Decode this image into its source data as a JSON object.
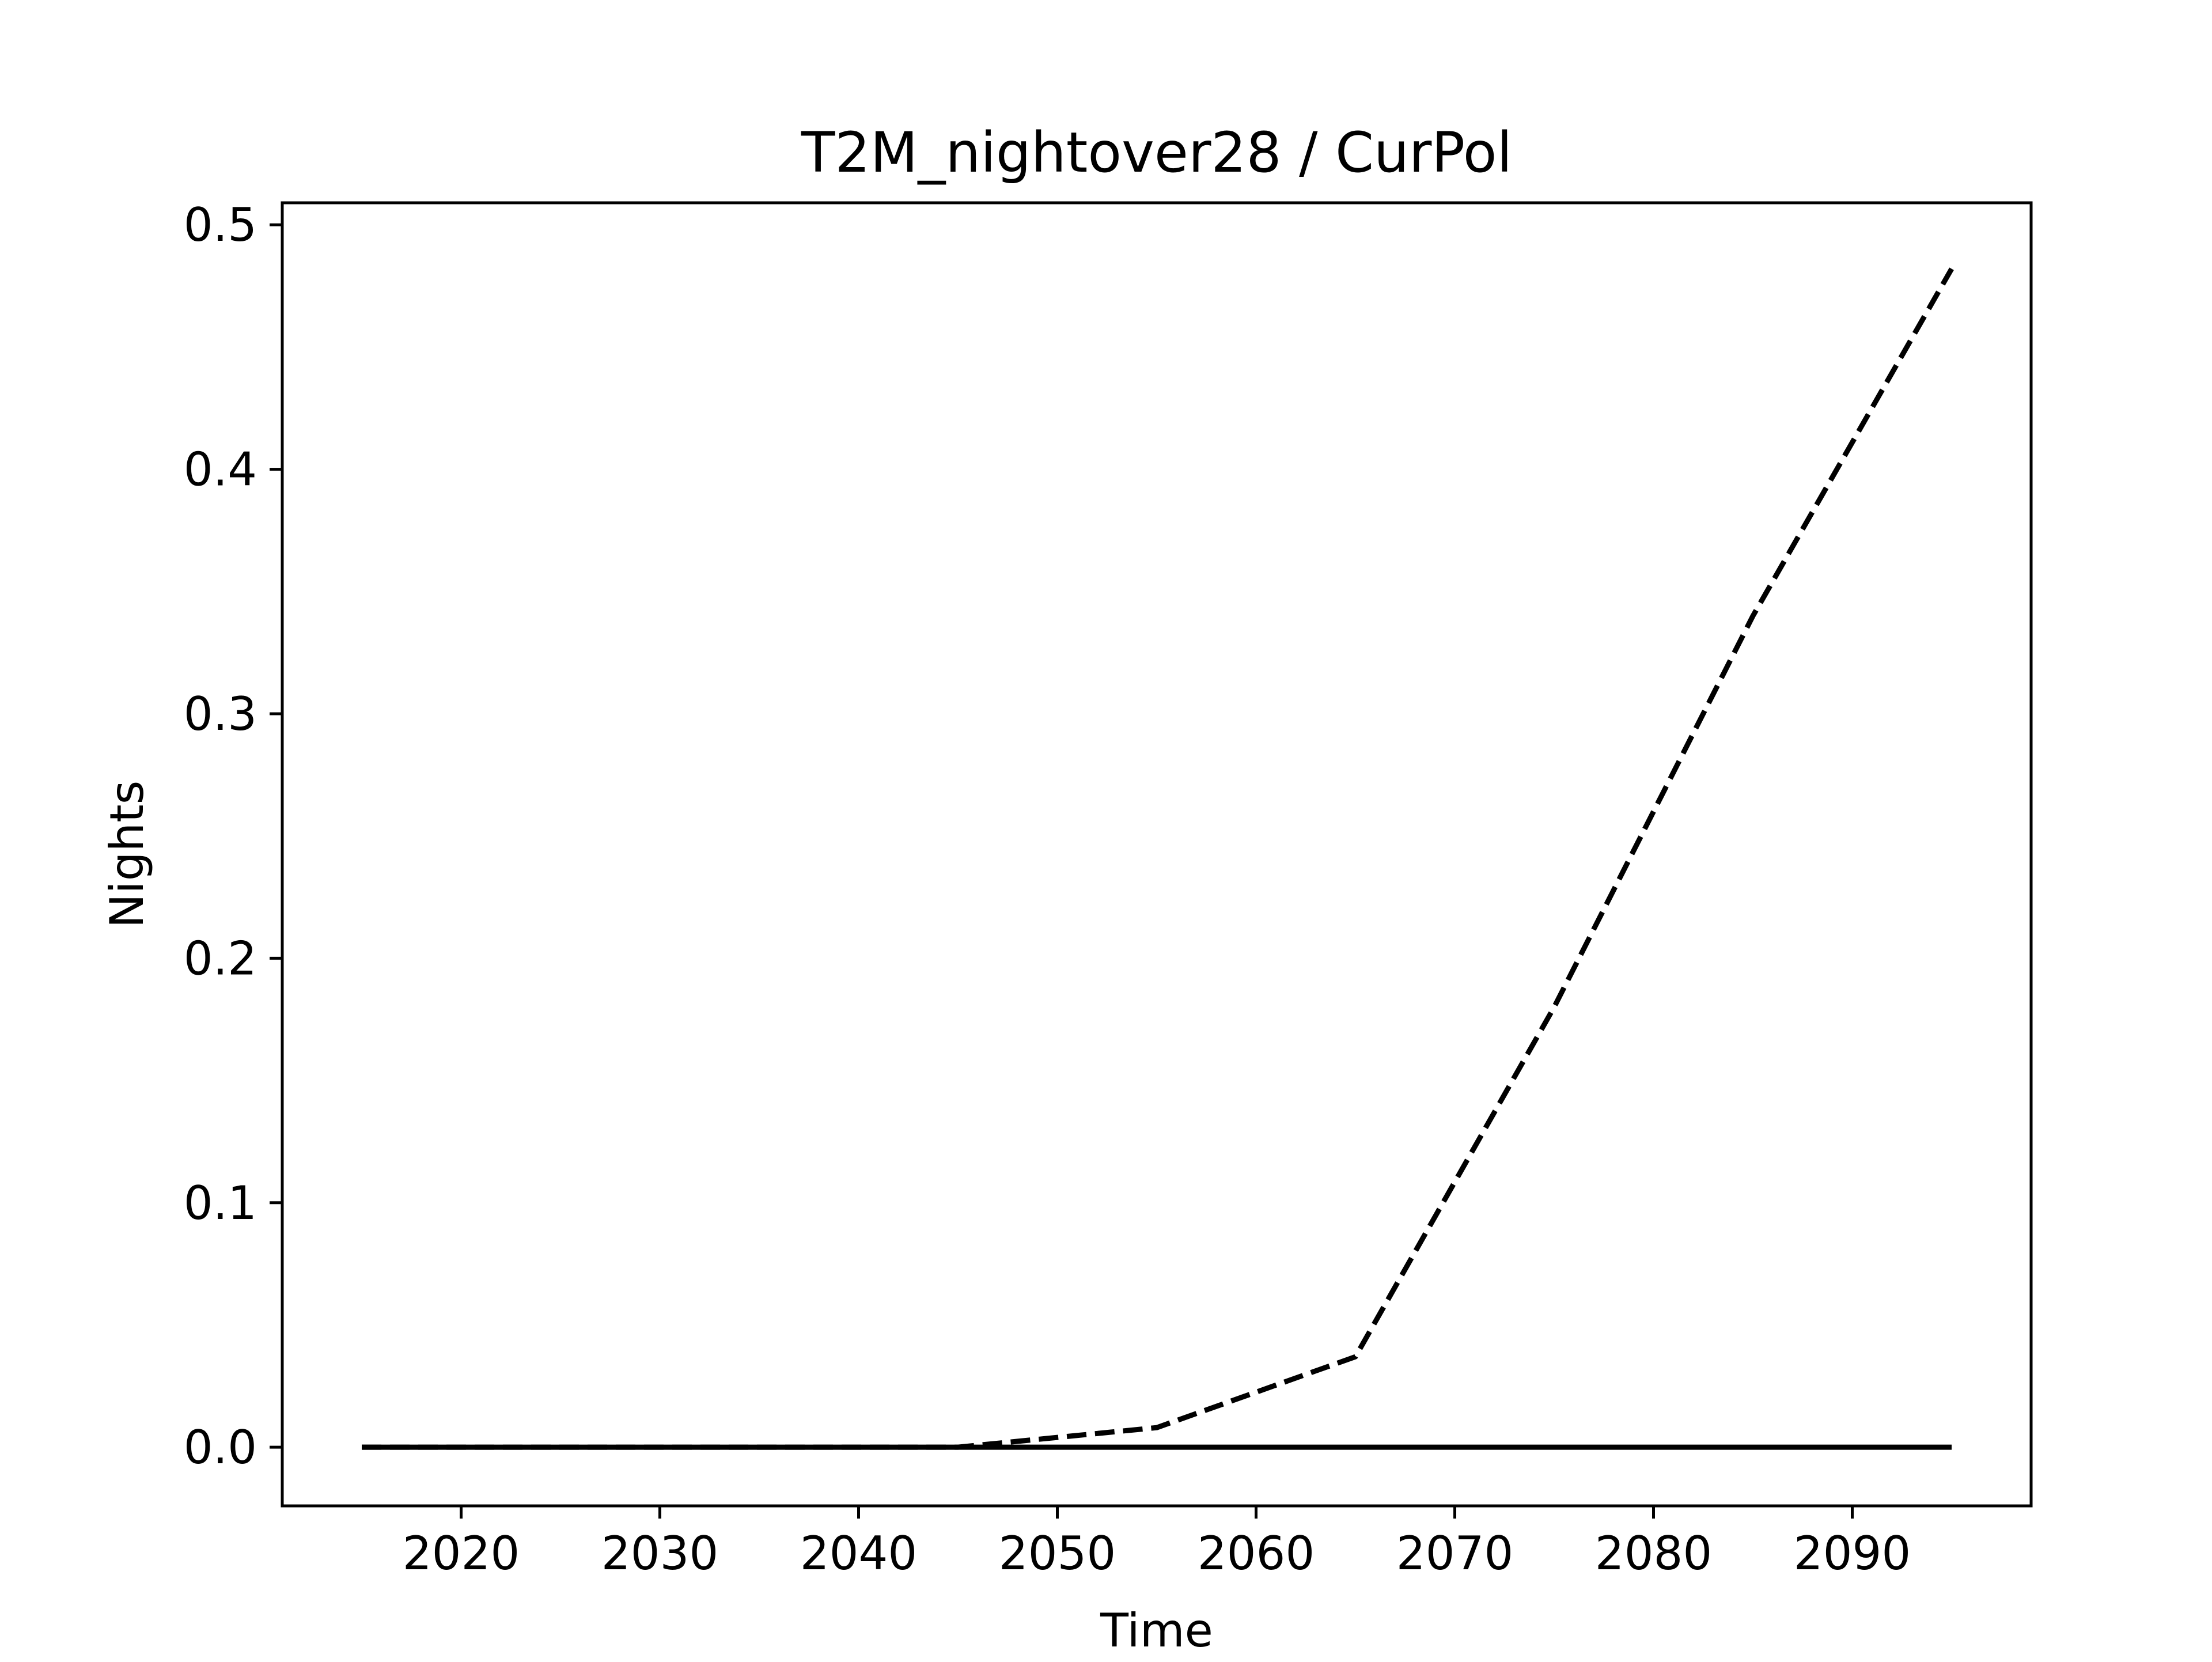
{
  "chart_data": {
    "type": "line",
    "title": "T2M_nightover28 / CurPol",
    "xlabel": "Time",
    "ylabel": "Nights",
    "xlim": [
      2011,
      2099
    ],
    "ylim": [
      -0.024,
      0.509
    ],
    "xticks": [
      2020,
      2030,
      2040,
      2050,
      2060,
      2070,
      2080,
      2090
    ],
    "xtick_labels": [
      "2020",
      "2030",
      "2040",
      "2050",
      "2060",
      "2070",
      "2080",
      "2090"
    ],
    "yticks": [
      0.0,
      0.1,
      0.2,
      0.3,
      0.4,
      0.5
    ],
    "ytick_labels": [
      "0.0",
      "0.1",
      "0.2",
      "0.3",
      "0.4",
      "0.5"
    ],
    "grid": false,
    "legend": false,
    "series": [
      {
        "style": "solid",
        "color": "#000000",
        "x": [
          2015,
          2025,
          2035,
          2045,
          2055,
          2065,
          2075,
          2085,
          2095
        ],
        "y": [
          0.0,
          0.0,
          0.0,
          0.0,
          0.0,
          0.0,
          0.0,
          0.0,
          0.0
        ]
      },
      {
        "style": "dashed",
        "color": "#000000",
        "x": [
          2015,
          2025,
          2035,
          2045,
          2055,
          2065,
          2075,
          2085,
          2095
        ],
        "y": [
          0.0,
          0.0,
          0.0,
          0.0,
          0.008,
          0.037,
          0.18,
          0.34,
          0.482
        ]
      }
    ]
  }
}
